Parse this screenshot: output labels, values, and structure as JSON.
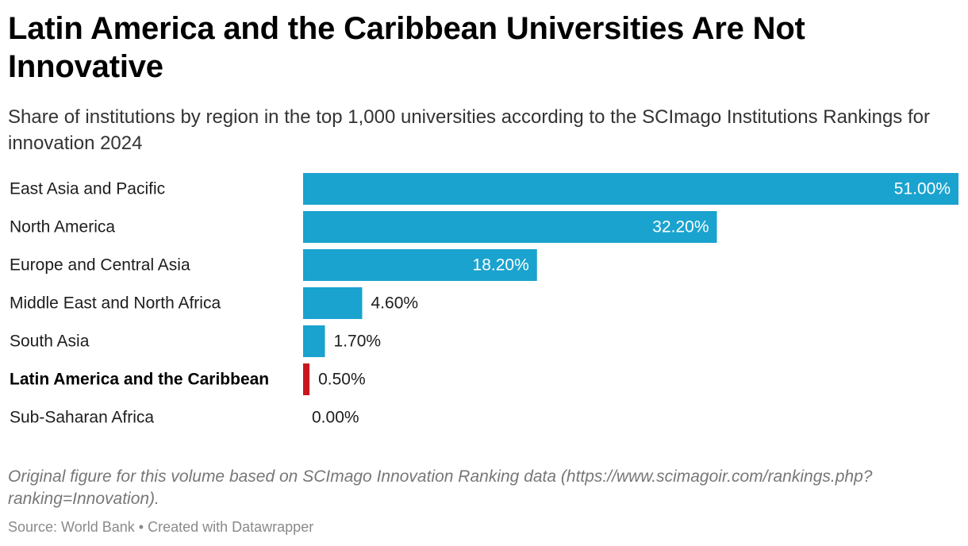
{
  "title": "Latin America and the Caribbean Universities Are Not Innovative",
  "subtitle": "Share of institutions by region in the top 1,000 universities according to the SCImago Institutions Rankings for innovation 2024",
  "notes": "Original figure for this volume based on SCImago Innovation Ranking data (https://www.scimagoir.com/rankings.php?ranking=Innovation).",
  "footer": {
    "source": "Source: World Bank",
    "separator": "•",
    "credit": "Created with Datawrapper"
  },
  "colors": {
    "bar": "#1aa3cf",
    "highlight": "#c8161d",
    "label_inside": "#ffffff",
    "label_outside": "#1d1d1d"
  },
  "chart_data": {
    "type": "bar",
    "orientation": "horizontal",
    "title": "Latin America and the Caribbean Universities Are Not Innovative",
    "xlabel": "",
    "ylabel": "",
    "xlim": [
      0,
      51
    ],
    "unit": "%",
    "grid": false,
    "categories": [
      "East Asia and Pacific",
      "North America",
      "Europe and Central Asia",
      "Middle East and North Africa",
      "South Asia",
      "Latin America and the Caribbean",
      "Sub-Saharan Africa"
    ],
    "values": [
      51.0,
      32.2,
      18.2,
      4.6,
      1.7,
      0.5,
      0.0
    ],
    "value_labels": [
      "51.00%",
      "32.20%",
      "18.20%",
      "4.60%",
      "1.70%",
      "0.50%",
      "0.00%"
    ],
    "highlighted_category": "Latin America and the Caribbean"
  }
}
